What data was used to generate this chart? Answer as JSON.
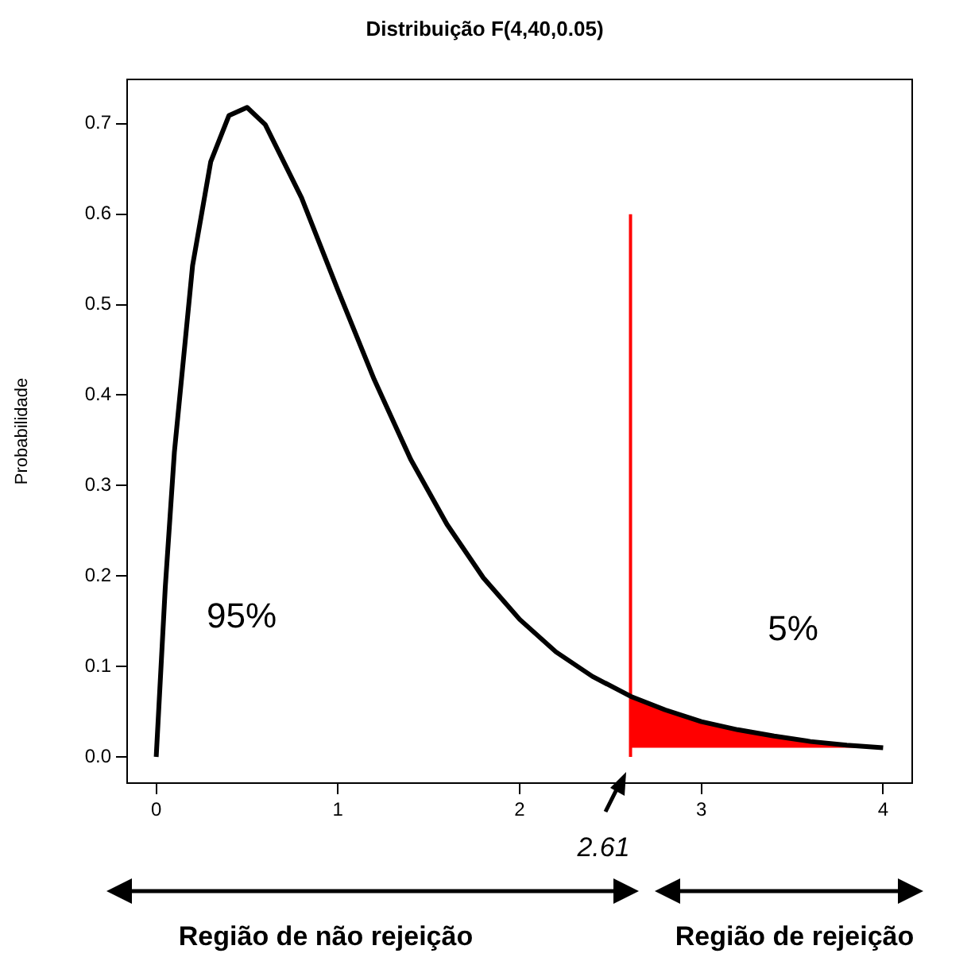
{
  "chart_data": {
    "type": "line",
    "title": "Distribuição F(4,40,0.05)",
    "ylabel": "Probabilidade",
    "xlim": [
      -0.16,
      4.16
    ],
    "xticks": [
      0,
      1,
      2,
      3,
      4
    ],
    "ylim": [
      -0.029,
      0.749
    ],
    "yticks": [
      {
        "value": 0,
        "label": "0.0"
      },
      0.1,
      0.2,
      0.3,
      0.4,
      0.5,
      0.6,
      0.7
    ],
    "grid": false,
    "legend": false,
    "marker": "none",
    "line_style": "solid",
    "series": [
      {
        "color": "#000000",
        "x": [
          0,
          0.05,
          0.1,
          0.2,
          0.3,
          0.4,
          0.5,
          0.6,
          0.8,
          1,
          1.2,
          1.4,
          1.6,
          1.8,
          2,
          2.2,
          2.4,
          2.61,
          2.8,
          3,
          3.2,
          3.4,
          3.6,
          3.8,
          4
        ],
        "values": [
          0,
          0.188,
          0.337,
          0.543,
          0.658,
          0.709,
          0.718,
          0.699,
          0.618,
          0.516,
          0.417,
          0.329,
          0.257,
          0.198,
          0.152,
          0.116,
          0.089,
          0.067,
          0.052,
          0.039,
          0.03,
          0.023,
          0.017,
          0.013,
          0.01
        ]
      },
      {
        "type": "area",
        "color": "#ff0000",
        "x": [
          2.61,
          2.8,
          3,
          3.2,
          3.4,
          3.6,
          3.8,
          4
        ],
        "values": [
          0.067,
          0.052,
          0.039,
          0.03,
          0.023,
          0.017,
          0.013,
          0.01
        ]
      },
      {
        "type": "line",
        "color": "#ff0000",
        "x": [
          2.61,
          2.61
        ],
        "values": [
          0,
          0.6
        ]
      }
    ],
    "annotations": [
      "95%",
      "5%",
      {
        "text": "2.61",
        "x": 2.61,
        "y": 0
      },
      "Região de não rejeição",
      "Região de rejeição"
    ]
  }
}
